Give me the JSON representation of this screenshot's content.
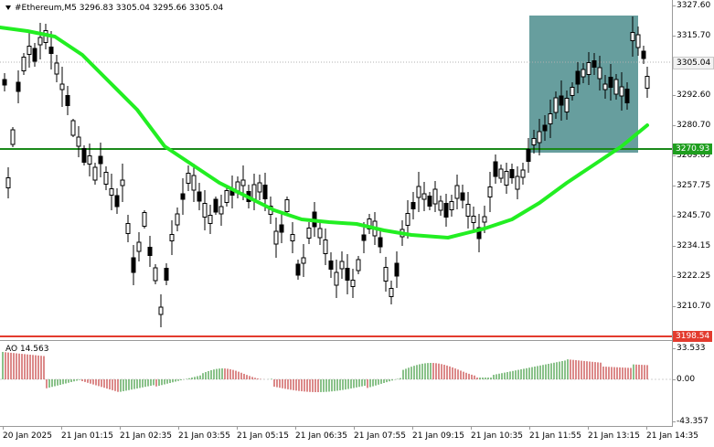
{
  "chart_title": "#Ethereum,M5  3296.83 3305.04 3295.66 3305.04",
  "ao_title": "AO 14.563",
  "colors": {
    "candle": "#000000",
    "ma_line": "#22ee22",
    "support_line": "#1a8a1a",
    "bottom_line": "#e33b2e",
    "highlight_box": "#5f9999",
    "ao_up": "#3c9a3c",
    "ao_down": "#c43c3c"
  },
  "price_axis": {
    "ticks": [
      "3327.60",
      "3315.70",
      "3292.60",
      "3280.70",
      "3269.65",
      "3257.75",
      "3245.70",
      "3234.15",
      "3222.25",
      "3210.70"
    ]
  },
  "ao_axis": {
    "ticks": [
      "33.533",
      "0.00",
      "-43.357"
    ]
  },
  "price_tags": {
    "current": "3305.04",
    "level": "3270.93",
    "low_level": "3198.54"
  },
  "time_axis": {
    "labels": [
      "20 Jan 2025",
      "21 Jan 01:15",
      "21 Jan 02:35",
      "21 Jan 03:55",
      "21 Jan 05:15",
      "21 Jan 06:35",
      "21 Jan 07:55",
      "21 Jan 09:15",
      "21 Jan 10:35",
      "21 Jan 11:55",
      "21 Jan 13:15",
      "21 Jan 14:35"
    ]
  }
}
